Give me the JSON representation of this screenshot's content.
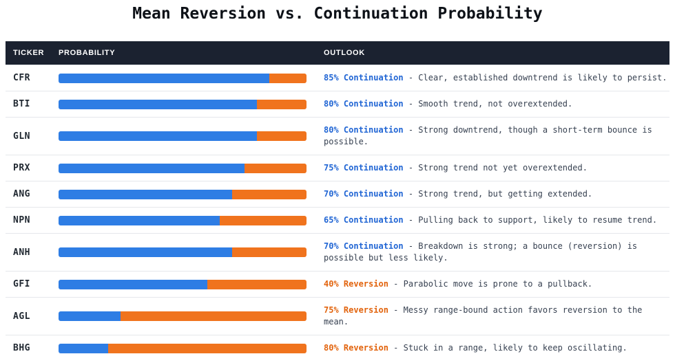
{
  "title": "Mean Reversion vs. Continuation Probability",
  "table": {
    "headers": {
      "ticker": "TICKER",
      "probability": "PROBABILITY",
      "outlook": "OUTLOOK"
    }
  },
  "colors": {
    "header_background": "#1b2230",
    "continuation_bar": "#2e7de4",
    "reversion_bar": "#f0731d",
    "continuation_label": "#2065d4",
    "reversion_label": "#e2630c",
    "description_text": "#374151",
    "row_divider": "#e5e7eb"
  },
  "chart_data": {
    "type": "bar",
    "subtype": "horizontal-stacked-probability-table",
    "title": "Mean Reversion vs. Continuation Probability",
    "xlabel": "",
    "ylabel": "",
    "xlim": [
      0,
      100
    ],
    "grid": false,
    "legend_position": "none",
    "categories": [
      "CFR",
      "BTI",
      "GLN",
      "PRX",
      "ANG",
      "NPN",
      "ANH",
      "GFI",
      "AGL",
      "BHG"
    ],
    "series": [
      {
        "name": "Continuation",
        "color": "#2e7de4",
        "values": [
          85,
          80,
          80,
          75,
          70,
          65,
          70,
          60,
          25,
          20
        ]
      },
      {
        "name": "Reversion",
        "color": "#f0731d",
        "values": [
          15,
          20,
          20,
          25,
          30,
          35,
          30,
          40,
          75,
          80
        ]
      }
    ],
    "rows": [
      {
        "ticker": "CFR",
        "continuation_pct": 85,
        "type": "continuation",
        "label": "85% Continuation",
        "desc": "- Clear, established downtrend is likely to persist."
      },
      {
        "ticker": "BTI",
        "continuation_pct": 80,
        "type": "continuation",
        "label": "80% Continuation",
        "desc": "- Smooth trend, not overextended."
      },
      {
        "ticker": "GLN",
        "continuation_pct": 80,
        "type": "continuation",
        "label": "80% Continuation",
        "desc": "- Strong downtrend, though a short-term bounce is possible."
      },
      {
        "ticker": "PRX",
        "continuation_pct": 75,
        "type": "continuation",
        "label": "75% Continuation",
        "desc": "- Strong trend not yet overextended."
      },
      {
        "ticker": "ANG",
        "continuation_pct": 70,
        "type": "continuation",
        "label": "70% Continuation",
        "desc": "- Strong trend, but getting extended."
      },
      {
        "ticker": "NPN",
        "continuation_pct": 65,
        "type": "continuation",
        "label": "65% Continuation",
        "desc": "- Pulling back to support, likely to resume trend."
      },
      {
        "ticker": "ANH",
        "continuation_pct": 70,
        "type": "continuation",
        "label": "70% Continuation",
        "desc": "- Breakdown is strong; a bounce (reversion) is possible but less likely."
      },
      {
        "ticker": "GFI",
        "continuation_pct": 60,
        "type": "reversion",
        "label": "40% Reversion",
        "desc": "- Parabolic move is prone to a pullback."
      },
      {
        "ticker": "AGL",
        "continuation_pct": 25,
        "type": "reversion",
        "label": "75% Reversion",
        "desc": "- Messy range-bound action favors reversion to the mean."
      },
      {
        "ticker": "BHG",
        "continuation_pct": 20,
        "type": "reversion",
        "label": "80% Reversion",
        "desc": "- Stuck in a range, likely to keep oscillating."
      }
    ]
  }
}
